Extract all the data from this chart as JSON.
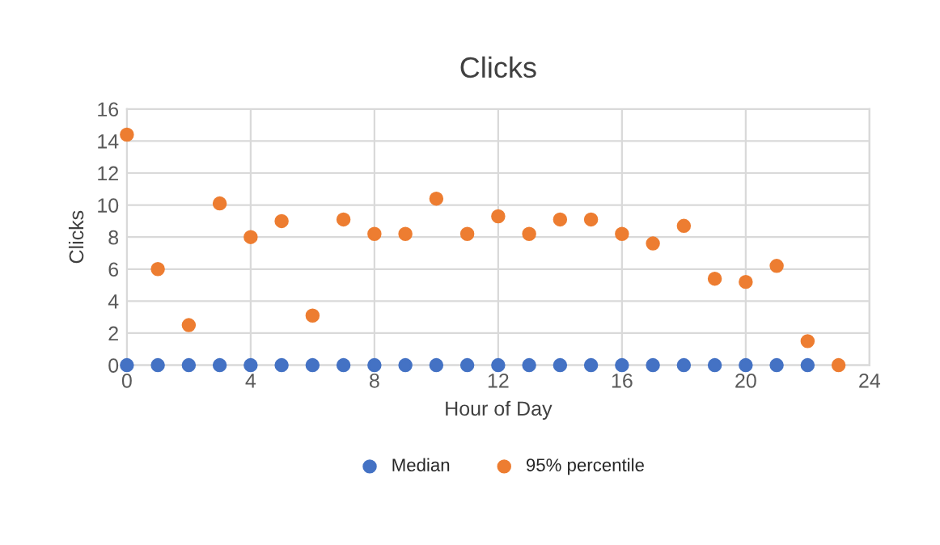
{
  "chart_data": {
    "type": "scatter",
    "title": "Clicks",
    "xlabel": "Hour of Day",
    "ylabel": "Clicks",
    "x": [
      0,
      1,
      2,
      3,
      4,
      5,
      6,
      7,
      8,
      9,
      10,
      11,
      12,
      13,
      14,
      15,
      16,
      17,
      18,
      19,
      20,
      21,
      22,
      23
    ],
    "series": [
      {
        "name": "Median",
        "color": "#4472c4",
        "values": [
          0,
          0,
          0,
          0,
          0,
          0,
          0,
          0,
          0,
          0,
          0,
          0,
          0,
          0,
          0,
          0,
          0,
          0,
          0,
          0,
          0,
          0,
          0,
          null
        ]
      },
      {
        "name": "95% percentile",
        "color": "#ed7d31",
        "values": [
          14.4,
          6,
          2.5,
          10.1,
          8,
          9,
          3.1,
          9.1,
          8.2,
          8.2,
          10.4,
          8.2,
          9.3,
          8.2,
          9.1,
          9.1,
          8.2,
          7.6,
          8.7,
          5.4,
          5.2,
          6.2,
          1.5,
          0
        ]
      }
    ],
    "xlim": [
      0,
      24
    ],
    "xticks": [
      0,
      4,
      8,
      12,
      16,
      20,
      24
    ],
    "ylim": [
      0,
      16
    ],
    "yticks": [
      0,
      2,
      4,
      6,
      8,
      10,
      12,
      14,
      16
    ],
    "grid": true,
    "legend": "bottom",
    "marker": "circle"
  }
}
